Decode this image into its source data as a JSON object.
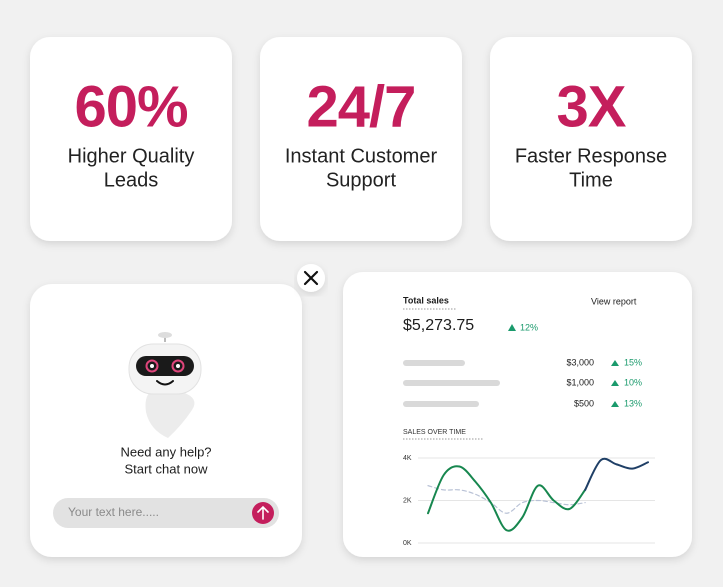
{
  "stats": [
    {
      "value": "60%",
      "label_lines": [
        "Higher Quality",
        "Leads"
      ]
    },
    {
      "value": "24/7",
      "label_lines": [
        "Instant Customer",
        "Support"
      ]
    },
    {
      "value": "3X",
      "label_lines": [
        "Faster Response",
        "Time"
      ]
    }
  ],
  "chat": {
    "prompt_lines": [
      "Need any help?",
      "Start chat now"
    ],
    "input_placeholder": "Your text here....."
  },
  "sales": {
    "title": "Total sales",
    "link": "View report",
    "total": "$5,273.75",
    "total_change": "12%",
    "rows": [
      {
        "value": "$3,000",
        "change": "15%"
      },
      {
        "value": "$1,000",
        "change": "10%"
      },
      {
        "value": "$500",
        "change": "13%"
      }
    ],
    "chart": {
      "type": "line",
      "title": "SALES OVER TIME",
      "x": [
        0,
        1,
        2,
        3,
        4,
        5,
        6,
        7,
        8,
        9,
        10,
        11,
        12,
        13,
        14
      ],
      "xlim": [
        0,
        14
      ],
      "ylim": [
        0,
        4
      ],
      "yticks": [
        {
          "value": 0,
          "label": "0K"
        },
        {
          "value": 2,
          "label": "2K"
        },
        {
          "value": 4,
          "label": "4K"
        }
      ],
      "grid": true,
      "series": [
        {
          "color": "#b9c2d6",
          "dashed": true,
          "values": [
            2.7,
            2.5,
            2.5,
            2.3,
            1.9,
            1.4,
            1.9,
            2.0,
            1.9,
            1.8,
            1.9,
            null,
            null,
            null,
            null
          ]
        },
        {
          "color": "#17874f",
          "values": [
            1.4,
            3.2,
            3.6,
            2.9,
            1.9,
            0.6,
            1.2,
            2.7,
            2.0,
            1.6,
            2.5,
            null,
            null,
            null,
            null
          ]
        },
        {
          "color": "#1f3f66",
          "values": [
            null,
            null,
            null,
            null,
            null,
            null,
            null,
            null,
            null,
            null,
            2.5,
            3.9,
            3.7,
            3.5,
            3.8
          ]
        }
      ]
    }
  }
}
